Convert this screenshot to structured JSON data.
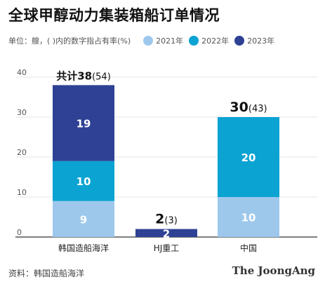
{
  "title": "全球甲醇动力集装箱船订单情况",
  "subtitle": "单位：艘，( )内的数字指占有率(%)",
  "legend": [
    {
      "label": "2021年",
      "color": "#9dc8ec"
    },
    {
      "label": "2022年",
      "color": "#0aa3d2"
    },
    {
      "label": "2023年",
      "color": "#2e4194"
    }
  ],
  "source": "资料：韩国造船海洋",
  "brand": "The JoongAng",
  "chart_data": {
    "type": "bar",
    "stacked": true,
    "categories": [
      "韩国造船海洋",
      "HJ重工",
      "中国"
    ],
    "series": [
      {
        "name": "2021年",
        "color": "#9dc8ec",
        "values": [
          9,
          0,
          10
        ]
      },
      {
        "name": "2022年",
        "color": "#0aa3d2",
        "values": [
          10,
          0,
          20
        ]
      },
      {
        "name": "2023年",
        "color": "#2e4194",
        "values": [
          19,
          2,
          0
        ]
      }
    ],
    "totals": [
      {
        "prefix": "共计",
        "value": "38",
        "share": "(54)"
      },
      {
        "prefix": "",
        "value": "2",
        "share": "(3)"
      },
      {
        "prefix": "",
        "value": "30",
        "share": "(43)"
      }
    ],
    "yticks": [
      0,
      10,
      20,
      30,
      40
    ],
    "ylim": [
      0,
      40
    ],
    "grid": true,
    "legend_position": "top"
  }
}
